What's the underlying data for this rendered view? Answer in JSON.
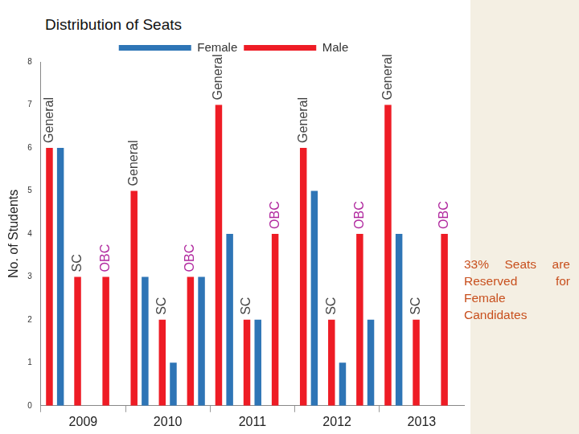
{
  "chart_data": {
    "type": "bar",
    "title": "Distribution of Seats",
    "categories": [
      "General",
      "SC",
      "OBC",
      "General",
      "SC",
      "OBC",
      "General",
      "SC",
      "OBC",
      "General",
      "SC",
      "OBC",
      "General",
      "SC",
      "OBC"
    ],
    "groups": [
      "2009",
      "2010",
      "2011",
      "2012",
      "2013"
    ],
    "series": [
      {
        "name": "Male",
        "color": "#ee1c25",
        "values": [
          6,
          3,
          3,
          5,
          2,
          3,
          7,
          2,
          4,
          6,
          2,
          4,
          7,
          2,
          4
        ]
      },
      {
        "name": "Female",
        "color": "#2e75b6",
        "values": [
          6,
          0,
          0,
          3,
          1,
          3,
          4,
          2,
          0,
          5,
          1,
          2,
          4,
          0,
          0
        ]
      }
    ],
    "ylim": [
      0,
      8
    ],
    "yticks": [
      0,
      1,
      2,
      3,
      4,
      5,
      6,
      7,
      8
    ],
    "y_label": "No. of Students",
    "annotation": "33% Seats are Reserved for Female Candidates",
    "grid": false,
    "legend": "top"
  }
}
